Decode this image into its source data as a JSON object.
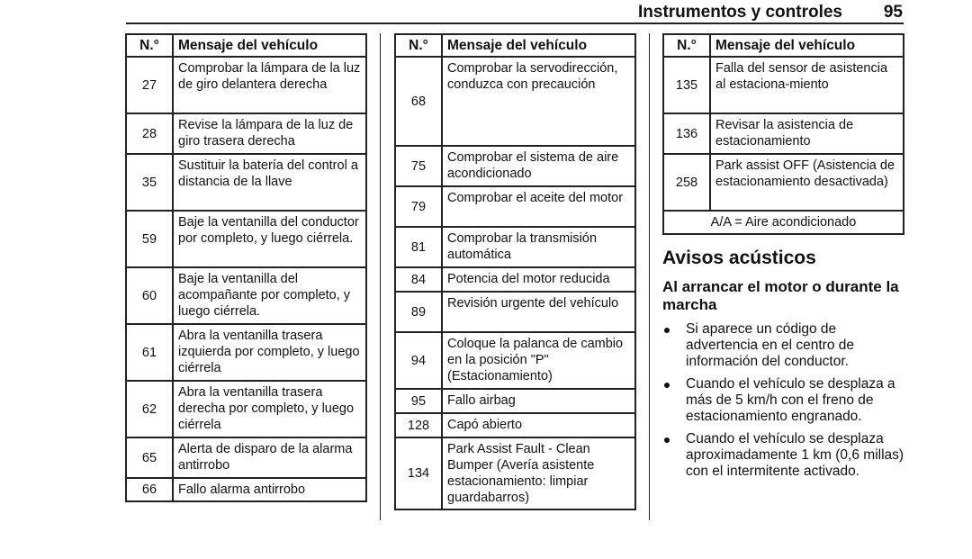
{
  "header": {
    "title": "Instrumentos y controles",
    "page": "95"
  },
  "table_headers": {
    "num": "N.°",
    "message": "Mensaje del vehículo"
  },
  "tables": [
    {
      "rows": [
        {
          "num": "27",
          "message": "Comprobar la lámpara de la luz de giro delantera derecha"
        },
        {
          "num": "28",
          "message": "Revise la lámpara de la luz de giro trasera derecha"
        },
        {
          "num": "35",
          "message": "Sustituir la batería del control a distancia de la llave"
        },
        {
          "num": "59",
          "message": "Baje la ventanilla del conductor por completo, y luego ciérrela."
        },
        {
          "num": "60",
          "message": "Baje la ventanilla del acompañante por completo, y luego ciérrela."
        },
        {
          "num": "61",
          "message": "Abra la ventanilla trasera izquierda por completo, y luego ciérrela"
        },
        {
          "num": "62",
          "message": "Abra la ventanilla trasera derecha por completo, y luego ciérrela"
        },
        {
          "num": "65",
          "message": "Alerta de disparo de la alarma antirrobo"
        },
        {
          "num": "66",
          "message": "Fallo alarma antirrobo"
        }
      ]
    },
    {
      "rows": [
        {
          "num": "68",
          "message": "Comprobar la servodirección, conduzca con precaución"
        },
        {
          "num": "75",
          "message": "Comprobar el sistema de aire acondicionado"
        },
        {
          "num": "79",
          "message": "Comprobar el aceite del motor"
        },
        {
          "num": "81",
          "message": "Comprobar la transmisión automática"
        },
        {
          "num": "84",
          "message": "Potencia del motor reducida"
        },
        {
          "num": "89",
          "message": "Revisión urgente del vehículo"
        },
        {
          "num": "94",
          "message": "Coloque la palanca de cambio en la posición \"P\" (Estacionamiento)"
        },
        {
          "num": "95",
          "message": "Fallo airbag"
        },
        {
          "num": "128",
          "message": "Capó abierto"
        },
        {
          "num": "134",
          "message": "Park Assist Fault - Clean Bumper (Avería asistente estacionamiento: limpiar guardabarros)"
        }
      ]
    },
    {
      "rows": [
        {
          "num": "135",
          "message": "Falla del sensor de asistencia al estaciona-miento"
        },
        {
          "num": "136",
          "message": "Revisar la asistencia de estacionamiento"
        },
        {
          "num": "258",
          "message": "Park assist OFF (Asistencia de estacionamiento desactivada)"
        }
      ],
      "note": "A/A = Aire acondicionado"
    }
  ],
  "section": {
    "title": "Avisos acústicos",
    "subtitle": "Al arrancar el motor o durante la marcha",
    "bullets": [
      "Si aparece un código de advertencia en el centro de información del conductor.",
      "Cuando el vehículo se desplaza a más de 5 km/h con el freno de estacionamiento engranado.",
      "Cuando el vehículo se desplaza aproximadamente 1 km (0,6 millas) con el intermitente activado."
    ]
  }
}
